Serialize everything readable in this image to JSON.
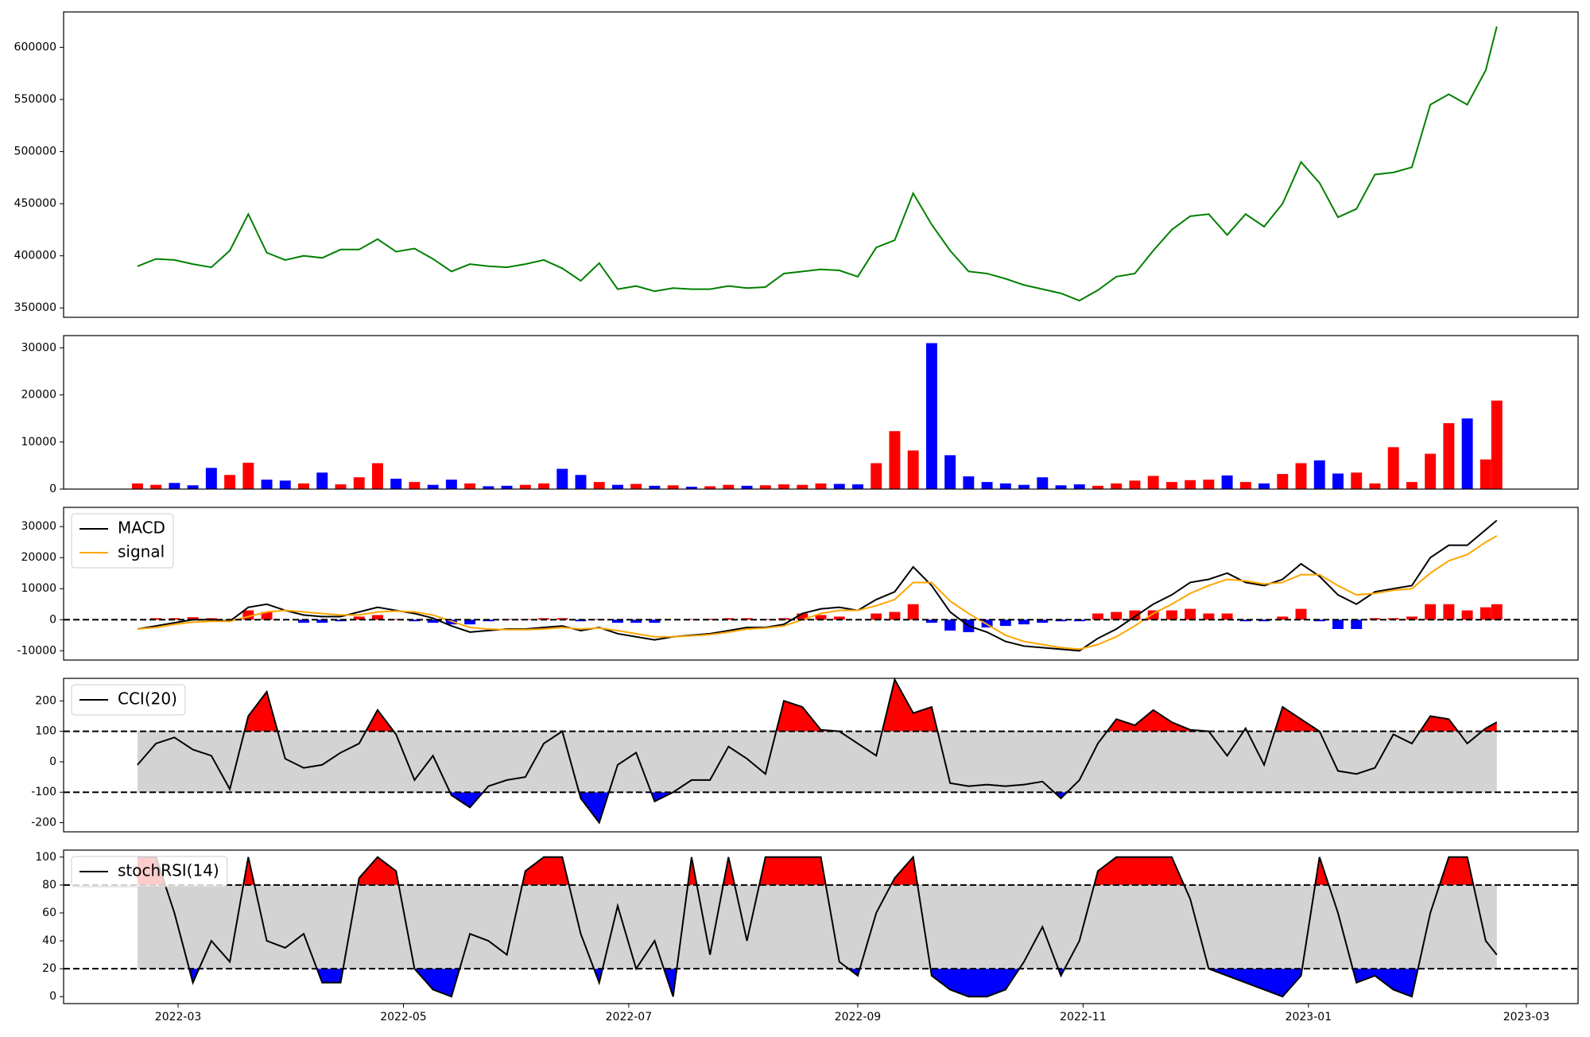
{
  "chart_data": [
    {
      "type": "line",
      "sharex": true,
      "color": "green",
      "values": [
        390000,
        397000,
        396000,
        392000,
        389000,
        405000,
        440000,
        403000,
        396000,
        400000,
        398000,
        406000,
        406000,
        416000,
        404000,
        407000,
        397000,
        385000,
        392000,
        390000,
        389000,
        392000,
        396000,
        388000,
        376000,
        393000,
        368000,
        371000,
        366000,
        369000,
        368000,
        368000,
        371000,
        369000,
        370000,
        383000,
        385000,
        387000,
        386000,
        380000,
        408000,
        415000,
        460000,
        430000,
        405000,
        385000,
        383000,
        378000,
        372000,
        368000,
        364000,
        357000,
        367000,
        380000,
        383000,
        405000,
        425000,
        438000,
        440000,
        420000,
        440000,
        428000,
        450000,
        490000,
        470000,
        437000,
        445000,
        478000,
        480000,
        485000,
        545000,
        555000,
        545000,
        578000,
        620000
      ],
      "ylim": [
        341000,
        634000
      ],
      "yticks": [
        350000,
        400000,
        450000,
        500000,
        550000,
        600000
      ]
    },
    {
      "type": "bar",
      "sharex": true,
      "up_color": "red",
      "down_color": "blue",
      "values": [
        1200,
        900,
        1300,
        800,
        4500,
        3000,
        5600,
        2000,
        1800,
        1200,
        3500,
        1000,
        2500,
        5500,
        2200,
        1500,
        900,
        2000,
        1200,
        600,
        700,
        900,
        1200,
        4300,
        3000,
        1500,
        900,
        1100,
        700,
        800,
        500,
        600,
        900,
        700,
        800,
        1000,
        900,
        1200,
        1100,
        1000,
        5500,
        12300,
        8200,
        31000,
        7200,
        2700,
        1500,
        1200,
        900,
        2500,
        800,
        1000,
        700,
        1200,
        1800,
        2800,
        1500,
        1900,
        2000,
        2900,
        1500,
        1200,
        3200,
        5500,
        6100,
        3300,
        3500,
        1200,
        8900,
        1500,
        7500,
        14000,
        15000,
        6300,
        18800
      ],
      "ylim": [
        0,
        32600
      ],
      "yticks": [
        0,
        10000,
        20000,
        30000
      ]
    },
    {
      "type": "line",
      "sharex": true,
      "legend": "upper left",
      "hlines": [
        0
      ],
      "series": [
        {
          "name": "MACD",
          "color": "black",
          "values": [
            -3000,
            -2000,
            -1000,
            0,
            0,
            -500,
            4000,
            5000,
            3000,
            1500,
            1000,
            1000,
            2500,
            4000,
            3000,
            2000,
            500,
            -2000,
            -4000,
            -3500,
            -3000,
            -3000,
            -2500,
            -2000,
            -3500,
            -2500,
            -4500,
            -5500,
            -6500,
            -5500,
            -5000,
            -4500,
            -3500,
            -2500,
            -2500,
            -1500,
            2000,
            3500,
            4000,
            3000,
            6500,
            9000,
            17000,
            11000,
            2500,
            -2000,
            -4000,
            -7000,
            -8500,
            -9000,
            -9500,
            -10000,
            -6000,
            -3000,
            1000,
            5000,
            8000,
            12000,
            13000,
            15000,
            12000,
            11000,
            13000,
            18000,
            14000,
            8000,
            5000,
            9000,
            10000,
            11000,
            20000,
            24000,
            24000,
            29000,
            32000
          ]
        },
        {
          "name": "signal",
          "color": "orange",
          "values": [
            -3000,
            -2500,
            -1500,
            -800,
            -500,
            -500,
            1000,
            2500,
            3000,
            2500,
            2000,
            1500,
            1500,
            2500,
            2800,
            2500,
            1500,
            -500,
            -2500,
            -3000,
            -3200,
            -3200,
            -3000,
            -2500,
            -3000,
            -2700,
            -3500,
            -4500,
            -5500,
            -5500,
            -5200,
            -4800,
            -4000,
            -3000,
            -2700,
            -2000,
            0,
            2000,
            3000,
            3000,
            4500,
            6500,
            12000,
            12000,
            6000,
            2000,
            -1500,
            -5000,
            -7000,
            -8000,
            -9000,
            -9500,
            -8000,
            -5500,
            -2000,
            2000,
            5000,
            8500,
            11000,
            13000,
            12500,
            11500,
            12000,
            14500,
            14500,
            11000,
            8000,
            8500,
            9500,
            10000,
            15000,
            19000,
            21000,
            25000,
            27000
          ]
        }
      ],
      "histogram": {
        "positive_color": "red",
        "negative_color": "blue",
        "values": [
          0,
          500,
          500,
          800,
          500,
          0,
          3000,
          2500,
          0,
          -1000,
          -1000,
          -500,
          1000,
          1500,
          200,
          -500,
          -1000,
          -1500,
          -1500,
          -500,
          200,
          200,
          500,
          500,
          -500,
          200,
          -1000,
          -1000,
          -1000,
          0,
          200,
          300,
          500,
          500,
          200,
          500,
          2000,
          1500,
          1000,
          0,
          2000,
          2500,
          5000,
          -1000,
          -3500,
          -4000,
          -2500,
          -2000,
          -1500,
          -1000,
          -500,
          -500,
          2000,
          2500,
          3000,
          3000,
          3000,
          3500,
          2000,
          2000,
          -500,
          -500,
          1000,
          3500,
          -500,
          -3000,
          -3000,
          500,
          500,
          1000,
          5000,
          5000,
          3000,
          4000,
          5000
        ]
      },
      "ylim": [
        -13000,
        36200
      ],
      "yticks": [
        -10000,
        0,
        10000,
        20000,
        30000
      ]
    },
    {
      "type": "line",
      "sharex": true,
      "legend": "upper left",
      "hlines": [
        100,
        -100
      ],
      "shade": {
        "between": "#d3d3d3",
        "above": "red",
        "below": "blue"
      },
      "series": [
        {
          "name": "CCI(20)",
          "color": "black",
          "values": [
            -10,
            60,
            80,
            40,
            20,
            -90,
            150,
            230,
            10,
            -20,
            -10,
            30,
            60,
            170,
            90,
            -60,
            20,
            -110,
            -150,
            -80,
            -60,
            -50,
            60,
            100,
            -120,
            -200,
            -10,
            30,
            -130,
            -100,
            -60,
            -60,
            50,
            10,
            -40,
            200,
            180,
            105,
            100,
            60,
            20,
            270,
            160,
            180,
            -70,
            -80,
            -75,
            -80,
            -75,
            -65,
            -120,
            -60,
            60,
            140,
            120,
            170,
            130,
            105,
            100,
            20,
            110,
            -10,
            180,
            140,
            100,
            -30,
            -40,
            -20,
            90,
            60,
            150,
            140,
            60,
            110,
            130
          ]
        }
      ],
      "ylim": [
        -230,
        274
      ],
      "yticks": [
        -200,
        -100,
        0,
        100,
        200
      ]
    },
    {
      "type": "line",
      "legend": "upper left",
      "hlines": [
        80,
        20
      ],
      "shade": {
        "between": "#d3d3d3",
        "above": "red",
        "below": "blue"
      },
      "series": [
        {
          "name": "stochRSI(14)",
          "color": "black",
          "values": [
            100,
            100,
            60,
            10,
            40,
            25,
            100,
            40,
            35,
            45,
            10,
            10,
            85,
            100,
            90,
            20,
            5,
            0,
            45,
            40,
            30,
            90,
            100,
            100,
            45,
            10,
            65,
            20,
            40,
            0,
            100,
            30,
            100,
            40,
            100,
            100,
            100,
            100,
            25,
            15,
            60,
            85,
            100,
            15,
            5,
            0,
            0,
            5,
            25,
            50,
            15,
            40,
            90,
            100,
            100,
            100,
            100,
            70,
            20,
            15,
            10,
            5,
            0,
            15,
            100,
            60,
            10,
            15,
            5,
            0,
            60,
            100,
            100,
            40,
            30
          ]
        }
      ],
      "ylim": [
        -5,
        105
      ],
      "yticks": [
        0,
        20,
        40,
        60,
        80,
        100
      ],
      "x": [
        "2022-02-18",
        "2022-02-23",
        "2022-02-28",
        "2022-03-05",
        "2022-03-10",
        "2022-03-15",
        "2022-03-20",
        "2022-03-25",
        "2022-03-30",
        "2022-04-04",
        "2022-04-09",
        "2022-04-14",
        "2022-04-19",
        "2022-04-24",
        "2022-04-29",
        "2022-05-04",
        "2022-05-09",
        "2022-05-14",
        "2022-05-19",
        "2022-05-24",
        "2022-05-29",
        "2022-06-03",
        "2022-06-08",
        "2022-06-13",
        "2022-06-18",
        "2022-06-23",
        "2022-06-28",
        "2022-07-03",
        "2022-07-08",
        "2022-07-13",
        "2022-07-18",
        "2022-07-23",
        "2022-07-28",
        "2022-08-02",
        "2022-08-07",
        "2022-08-12",
        "2022-08-17",
        "2022-08-22",
        "2022-08-27",
        "2022-09-01",
        "2022-09-06",
        "2022-09-11",
        "2022-09-16",
        "2022-09-21",
        "2022-09-26",
        "2022-10-01",
        "2022-10-06",
        "2022-10-11",
        "2022-10-16",
        "2022-10-21",
        "2022-10-26",
        "2022-10-31",
        "2022-11-05",
        "2022-11-10",
        "2022-11-15",
        "2022-11-20",
        "2022-11-25",
        "2022-11-30",
        "2022-12-05",
        "2022-12-10",
        "2022-12-15",
        "2022-12-20",
        "2022-12-25",
        "2022-12-30",
        "2023-01-04",
        "2023-01-09",
        "2023-01-14",
        "2023-01-19",
        "2023-01-24",
        "2023-01-29",
        "2023-02-03",
        "2023-02-08",
        "2023-02-13",
        "2023-02-18",
        "2023-02-21"
      ],
      "xlim": [
        "2022-01-29",
        "2023-03-15"
      ],
      "xticks": [
        "2022-03",
        "2022-05",
        "2022-07",
        "2022-09",
        "2022-11",
        "2023-01",
        "2023-03"
      ]
    }
  ]
}
